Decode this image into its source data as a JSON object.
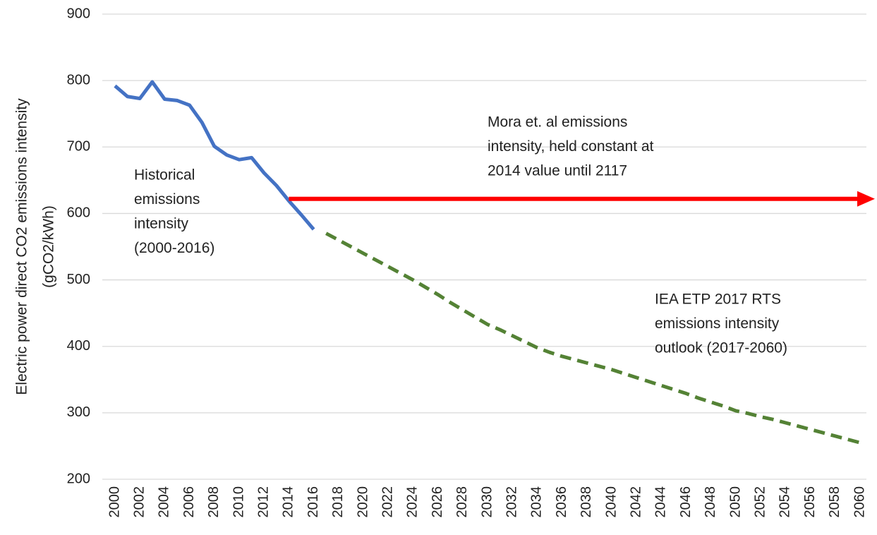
{
  "chart_data": {
    "type": "line",
    "ylabel": [
      "Electric power direct CO2 emissions intensity",
      "(gCO2/kWh)"
    ],
    "x": [
      2000,
      2001,
      2002,
      2003,
      2004,
      2005,
      2006,
      2007,
      2008,
      2009,
      2010,
      2011,
      2012,
      2013,
      2014,
      2015,
      2016,
      2017,
      2018,
      2019,
      2020,
      2021,
      2022,
      2023,
      2024,
      2025,
      2026,
      2027,
      2028,
      2029,
      2030,
      2031,
      2032,
      2033,
      2034,
      2035,
      2036,
      2037,
      2038,
      2039,
      2040,
      2041,
      2042,
      2043,
      2044,
      2045,
      2046,
      2047,
      2048,
      2049,
      2050,
      2051,
      2052,
      2053,
      2054,
      2055,
      2056,
      2057,
      2058,
      2059,
      2060
    ],
    "series": [
      {
        "color": "#4472c4",
        "dash": false,
        "values": [
          792,
          776,
          773,
          798,
          772,
          770,
          763,
          737,
          701,
          688,
          681,
          684,
          661,
          642,
          619,
          598,
          576,
          null,
          null,
          null,
          null,
          null,
          null,
          null,
          null,
          null,
          null,
          null,
          null,
          null,
          null,
          null,
          null,
          null,
          null,
          null,
          null,
          null,
          null,
          null,
          null,
          null,
          null,
          null,
          null,
          null,
          null,
          null,
          null,
          null,
          null,
          null,
          null,
          null,
          null,
          null,
          null,
          null,
          null,
          null,
          null
        ]
      },
      {
        "color": "#548235",
        "dash": true,
        "values": [
          null,
          null,
          null,
          null,
          null,
          null,
          null,
          null,
          null,
          null,
          null,
          null,
          null,
          null,
          null,
          null,
          null,
          570,
          560,
          550,
          540,
          530,
          520,
          510,
          500,
          489,
          478,
          466,
          455,
          444,
          433,
          425,
          416,
          407,
          398,
          391,
          385,
          380,
          375,
          370,
          365,
          359,
          353,
          347,
          341,
          335,
          329,
          322,
          316,
          310,
          303,
          299,
          294,
          290,
          285,
          280,
          275,
          270,
          265,
          260,
          255
        ]
      },
      {
        "color": "#ff0000",
        "dash": false,
        "arrow": true,
        "values": [
          null,
          null,
          null,
          null,
          null,
          null,
          null,
          null,
          null,
          null,
          null,
          null,
          null,
          null,
          622,
          622,
          622,
          622,
          622,
          622,
          622,
          622,
          622,
          622,
          622,
          622,
          622,
          622,
          622,
          622,
          622,
          622,
          622,
          622,
          622,
          622,
          622,
          622,
          622,
          622,
          622,
          622,
          622,
          622,
          622,
          622,
          622,
          622,
          622,
          622,
          622,
          622,
          622,
          622,
          622,
          622,
          622,
          622,
          622,
          622,
          622
        ]
      }
    ],
    "annotations": [
      [
        "Historical",
        "emissions",
        "intensity",
        "(2000-2016)"
      ],
      [
        "Mora et. al emissions",
        "intensity, held constant at",
        "2014 value until 2117"
      ],
      [
        "IEA ETP 2017 RTS",
        "emissions intensity",
        "outlook (2017-2060)"
      ]
    ],
    "xlim": [
      2000,
      2060
    ],
    "xticks": [
      2000,
      2002,
      2004,
      2006,
      2008,
      2010,
      2012,
      2014,
      2016,
      2018,
      2020,
      2022,
      2024,
      2026,
      2028,
      2030,
      2032,
      2034,
      2036,
      2038,
      2040,
      2042,
      2044,
      2046,
      2048,
      2050,
      2052,
      2054,
      2056,
      2058,
      2060
    ],
    "ylim": [
      200,
      900
    ],
    "yticks": [
      200,
      300,
      400,
      500,
      600,
      700,
      800,
      900
    ],
    "grid": true
  }
}
